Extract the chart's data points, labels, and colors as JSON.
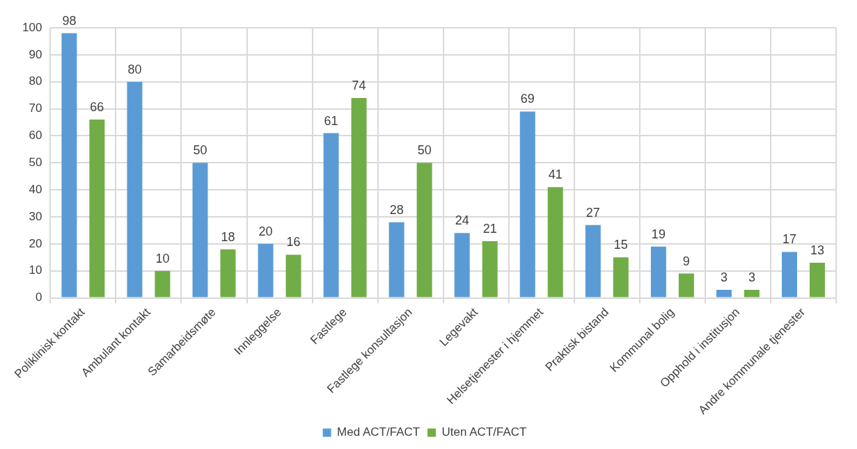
{
  "chart_data": {
    "type": "bar",
    "categories": [
      "Poliklinisk kontakt",
      "Ambulant kontakt",
      "Samarbeidsmøte",
      "Innleggelse",
      "Fastlege",
      "Fastlege konsultasjon",
      "Legevakt",
      "Helsetjenester i hjemmet",
      "Praktisk bistand",
      "Kommunal bolig",
      "Opphold i institusjon",
      "Andre kommunale tjenester"
    ],
    "series": [
      {
        "name": "Med ACT/FACT",
        "color": "#5b9bd5",
        "values": [
          98,
          80,
          50,
          20,
          61,
          28,
          24,
          69,
          27,
          19,
          3,
          17
        ]
      },
      {
        "name": "Uten ACT/FACT",
        "color": "#70ad47",
        "values": [
          66,
          10,
          18,
          16,
          74,
          50,
          21,
          41,
          15,
          9,
          3,
          13
        ]
      }
    ],
    "ylim": [
      0,
      100
    ],
    "yticks": [
      0,
      10,
      20,
      30,
      40,
      50,
      60,
      70,
      80,
      90,
      100
    ],
    "grid": true,
    "legend": "bottom",
    "data_labels": true
  }
}
